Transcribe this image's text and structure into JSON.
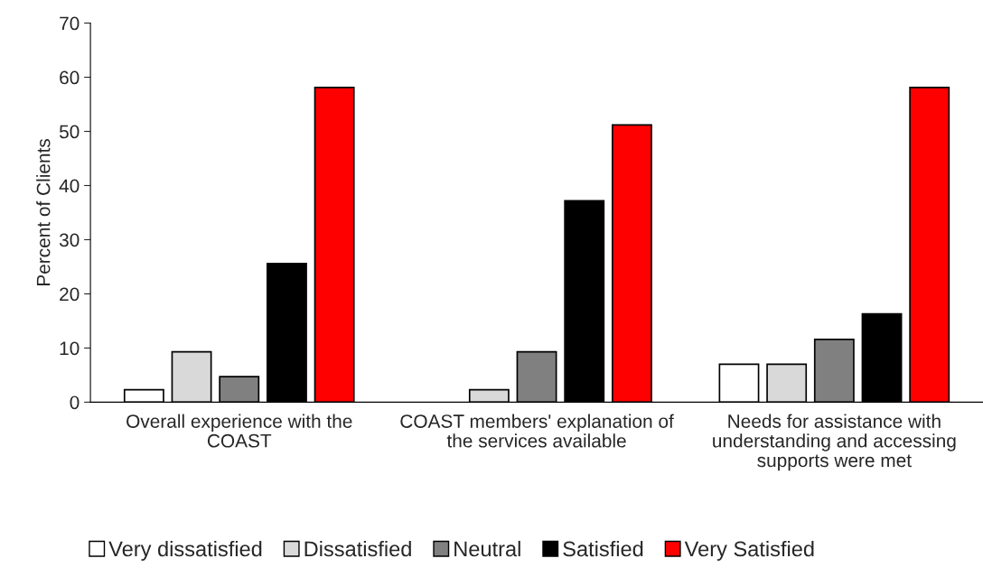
{
  "chart_data": {
    "type": "bar",
    "ylabel": "Percent of Clients",
    "categories": [
      "Overall experience with the COAST",
      "COAST members' explanation of the services available",
      "Needs for assistance with understanding and accessing supports were met"
    ],
    "series": [
      {
        "name": "Very dissatisfied",
        "color": "#ffffff",
        "values": [
          2.3,
          0,
          7.0
        ]
      },
      {
        "name": "Dissatisfied",
        "color": "#d9d9d9",
        "values": [
          9.3,
          2.3,
          7.0
        ]
      },
      {
        "name": "Neutral",
        "color": "#808080",
        "values": [
          4.7,
          9.3,
          11.6
        ]
      },
      {
        "name": "Satisfied",
        "color": "#000000",
        "values": [
          25.6,
          37.2,
          16.3
        ]
      },
      {
        "name": "Very Satisfied",
        "color": "#ff0000",
        "values": [
          58.1,
          51.2,
          58.1
        ]
      }
    ],
    "ylim": [
      0,
      70
    ],
    "yticks": [
      0,
      10,
      20,
      30,
      40,
      50,
      60,
      70
    ],
    "grid": false,
    "legend": "bottom"
  }
}
